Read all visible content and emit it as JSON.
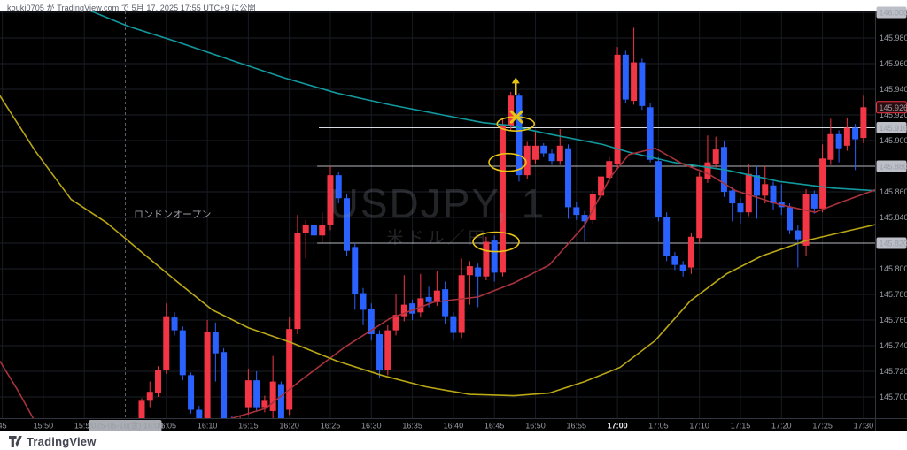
{
  "header": {
    "published_line": "kouki0705 が TradingView.com で 5月 17, 2025 17:55 UTC+9 に公開"
  },
  "watermark": {
    "symbol": "USDJPY, 1",
    "description": "米ドル／円"
  },
  "footer": {
    "brand": "TradingView"
  },
  "annotations": {
    "london_open_label": "ロンドンオープン",
    "london_line_minute": -2,
    "ellipses": [
      {
        "m": 45.6,
        "price": 145.913,
        "rx": 21,
        "ry": 8
      },
      {
        "m": 44.6,
        "price": 145.883,
        "rx": 21,
        "ry": 10
      },
      {
        "m": 43.2,
        "price": 145.821,
        "rx": 26,
        "ry": 11
      }
    ],
    "x_mark": {
      "m": 45.7,
      "price": 145.9185
    },
    "arrow_up": {
      "m": 45.6,
      "tip_price": 145.948,
      "base_price": 145.9355
    },
    "marker_color": "#e8c414"
  },
  "price_axis": {
    "ticks": [
      "146.000",
      "145.980",
      "145.960",
      "145.940",
      "145.920",
      "145.900",
      "145.880",
      "145.860",
      "145.840",
      "145.820",
      "145.800",
      "145.780",
      "145.760",
      "145.740",
      "145.720",
      "145.700"
    ],
    "level_badges": [
      {
        "label": "146.000",
        "price": 146.0
      },
      {
        "label": "145.910",
        "price": 145.91
      },
      {
        "label": "145.880",
        "price": 145.88
      },
      {
        "label": "145.820",
        "price": 145.82
      }
    ],
    "current_badge": {
      "label": "145.926",
      "price": 145.926
    }
  },
  "time_axis": {
    "ticks": [
      {
        "label": "45",
        "m": -17
      },
      {
        "label": "15:50",
        "m": -12
      },
      {
        "label": "15:55",
        "m": -7
      },
      {
        "label": "16:05",
        "m": 3
      },
      {
        "label": "16:10",
        "m": 8
      },
      {
        "label": "16:15",
        "m": 13
      },
      {
        "label": "16:20",
        "m": 18
      },
      {
        "label": "16:25",
        "m": 23
      },
      {
        "label": "16:30",
        "m": 28
      },
      {
        "label": "16:35",
        "m": 33
      },
      {
        "label": "16:40",
        "m": 38
      },
      {
        "label": "16:45",
        "m": 43
      },
      {
        "label": "16:50",
        "m": 48
      },
      {
        "label": "16:55",
        "m": 53
      },
      {
        "label": "17:00",
        "m": 58,
        "em": true
      },
      {
        "label": "17:05",
        "m": 63
      },
      {
        "label": "17:10",
        "m": 68
      },
      {
        "label": "17:15",
        "m": 73
      },
      {
        "label": "17:20",
        "m": 78
      },
      {
        "label": "17:25",
        "m": 83
      },
      {
        "label": "17:30",
        "m": 88
      }
    ],
    "date_badge": {
      "label": "2025-05-16(金) 16:00",
      "m": -2
    }
  },
  "chart_data": {
    "type": "candlestick",
    "symbol": "USDJPY",
    "interval": "1",
    "price_range": [
      145.7,
      146.0
    ],
    "grid_step": 0.02,
    "current_price": 145.926,
    "colors": {
      "background": "#000000",
      "up_candle": "#f23645",
      "down_candle": "#2962ff",
      "grid": "#1c1f29",
      "vgrid": "#181b23",
      "ema_teal": "#12999e",
      "ma_red": "#a8323c",
      "ma_yellow": "#b9a715",
      "separator": "#31353f"
    },
    "rays": [
      {
        "price": 145.91,
        "from_m": 21.6,
        "color": "#d7dae0"
      },
      {
        "price": 145.88,
        "from_m": 21.4,
        "color": "#b4b8c0"
      },
      {
        "price": 145.82,
        "from_m": 21.4,
        "color": "#b4b8c0"
      }
    ],
    "candles": [
      [
        "16:02",
        145.681,
        145.699,
        145.678,
        145.697
      ],
      [
        "16:03",
        145.697,
        145.712,
        145.692,
        145.704
      ],
      [
        "16:04",
        145.703,
        145.724,
        145.7,
        145.721
      ],
      [
        "16:05",
        145.721,
        145.773,
        145.718,
        145.763
      ],
      [
        "16:06",
        145.762,
        145.766,
        145.748,
        145.752
      ],
      [
        "16:07",
        145.752,
        145.755,
        145.713,
        145.717
      ],
      [
        "16:08",
        145.717,
        145.719,
        145.687,
        145.69
      ],
      [
        "16:09",
        145.69,
        145.693,
        145.679,
        145.682
      ],
      [
        "16:10",
        145.683,
        145.76,
        145.68,
        145.751
      ],
      [
        "16:11",
        145.751,
        145.758,
        145.712,
        145.734
      ],
      [
        "16:12",
        145.735,
        145.738,
        145.679,
        145.682
      ],
      [
        "16:13",
        145.682,
        145.685,
        145.674,
        145.677
      ],
      [
        "16:14",
        145.677,
        145.686,
        145.674,
        145.682
      ],
      [
        "16:15",
        145.692,
        145.722,
        145.686,
        145.713
      ],
      [
        "16:16",
        145.713,
        145.72,
        145.689,
        145.692
      ],
      [
        "16:17",
        145.692,
        145.701,
        145.688,
        145.697
      ],
      [
        "16:18",
        145.689,
        145.732,
        145.683,
        145.712
      ],
      [
        "16:19",
        145.71,
        145.712,
        145.68,
        145.683
      ],
      [
        "16:20",
        145.69,
        145.762,
        145.686,
        145.753
      ],
      [
        "16:21",
        145.753,
        145.842,
        145.749,
        145.828
      ],
      [
        "16:22",
        145.828,
        145.838,
        145.808,
        145.834
      ],
      [
        "16:23",
        145.834,
        145.837,
        145.809,
        145.826
      ],
      [
        "16:24",
        145.826,
        145.844,
        145.82,
        145.834
      ],
      [
        "16:25",
        145.834,
        145.88,
        145.83,
        145.873
      ],
      [
        "16:26",
        145.873,
        145.876,
        145.851,
        145.855
      ],
      [
        "16:27",
        145.855,
        145.858,
        145.81,
        145.814
      ],
      [
        "16:28",
        145.817,
        145.82,
        145.768,
        145.78
      ],
      [
        "16:29",
        145.781,
        145.785,
        145.756,
        145.768
      ],
      [
        "16:30",
        145.769,
        145.773,
        145.744,
        145.749
      ],
      [
        "16:31",
        145.749,
        145.752,
        145.715,
        145.721
      ],
      [
        "16:32",
        145.721,
        145.756,
        145.717,
        145.752
      ],
      [
        "16:33",
        145.752,
        145.78,
        145.748,
        145.764
      ],
      [
        "16:34",
        145.763,
        145.795,
        145.759,
        145.772
      ],
      [
        "16:35",
        145.773,
        145.776,
        145.76,
        145.765
      ],
      [
        "16:36",
        145.766,
        145.796,
        145.762,
        145.777
      ],
      [
        "16:37",
        145.778,
        145.786,
        145.77,
        145.774
      ],
      [
        "16:38",
        145.774,
        145.798,
        145.771,
        145.783
      ],
      [
        "16:39",
        145.784,
        145.79,
        145.757,
        145.763
      ],
      [
        "16:40",
        145.763,
        145.766,
        145.744,
        145.75
      ],
      [
        "16:41",
        145.75,
        145.808,
        145.746,
        145.795
      ],
      [
        "16:42",
        145.795,
        145.806,
        145.772,
        145.802
      ],
      [
        "16:43",
        145.801,
        145.804,
        145.77,
        145.794
      ],
      [
        "16:44",
        145.794,
        145.825,
        145.791,
        145.821
      ],
      [
        "16:45",
        145.822,
        145.826,
        145.79,
        145.797
      ],
      [
        "16:46",
        145.797,
        145.917,
        145.794,
        145.912
      ],
      [
        "16:47",
        145.911,
        145.938,
        145.908,
        145.935
      ],
      [
        "16:48",
        145.935,
        145.937,
        145.868,
        145.873
      ],
      [
        "16:49",
        145.873,
        145.899,
        145.87,
        145.896
      ],
      [
        "16:50",
        145.885,
        145.908,
        145.882,
        145.896
      ],
      [
        "16:51",
        145.896,
        145.898,
        145.887,
        145.89
      ],
      [
        "16:52",
        145.89,
        145.893,
        145.881,
        145.884
      ],
      [
        "16:53",
        145.884,
        145.909,
        145.881,
        145.896
      ],
      [
        "16:54",
        145.894,
        145.897,
        145.839,
        145.848
      ],
      [
        "16:55",
        145.848,
        145.852,
        145.838,
        145.842
      ],
      [
        "16:56",
        145.842,
        145.845,
        145.821,
        145.837
      ],
      [
        "16:57",
        145.838,
        145.861,
        145.835,
        145.858
      ],
      [
        "16:58",
        145.857,
        145.875,
        145.854,
        145.872
      ],
      [
        "16:59",
        145.871,
        145.887,
        145.868,
        145.884
      ],
      [
        "17:00",
        145.882,
        145.973,
        145.879,
        145.967
      ],
      [
        "17:01",
        145.967,
        145.97,
        145.929,
        145.932
      ],
      [
        "17:02",
        145.931,
        145.988,
        145.928,
        145.961
      ],
      [
        "17:03",
        145.961,
        145.964,
        145.924,
        145.927
      ],
      [
        "17:04",
        145.926,
        145.929,
        145.883,
        145.885
      ],
      [
        "17:05",
        145.884,
        145.887,
        145.837,
        145.84
      ],
      [
        "17:06",
        145.84,
        145.844,
        145.806,
        145.81
      ],
      [
        "17:07",
        145.81,
        145.813,
        145.799,
        145.803
      ],
      [
        "17:08",
        145.803,
        145.806,
        145.794,
        145.798
      ],
      [
        "17:09",
        145.801,
        145.828,
        145.796,
        145.825
      ],
      [
        "17:10",
        145.824,
        145.875,
        145.82,
        145.872
      ],
      [
        "17:11",
        145.87,
        145.904,
        145.867,
        145.883
      ],
      [
        "17:12",
        145.882,
        145.903,
        145.879,
        145.893
      ],
      [
        "17:13",
        145.895,
        145.9,
        145.856,
        145.86
      ],
      [
        "17:14",
        145.861,
        145.864,
        145.837,
        145.851
      ],
      [
        "17:15",
        145.851,
        145.855,
        145.835,
        145.844
      ],
      [
        "17:16",
        145.844,
        145.882,
        145.841,
        145.874
      ],
      [
        "17:17",
        145.873,
        145.88,
        145.839,
        145.857
      ],
      [
        "17:18",
        145.857,
        145.88,
        145.851,
        145.866
      ],
      [
        "17:19",
        145.865,
        145.868,
        145.846,
        145.851
      ],
      [
        "17:20",
        145.852,
        145.866,
        145.842,
        145.848
      ],
      [
        "17:21",
        145.848,
        145.851,
        145.827,
        145.83
      ],
      [
        "17:22",
        145.83,
        145.834,
        145.801,
        145.823
      ],
      [
        "17:23",
        145.818,
        145.862,
        145.81,
        145.858
      ],
      [
        "17:24",
        145.858,
        145.861,
        145.843,
        145.847
      ],
      [
        "17:25",
        145.847,
        145.897,
        145.844,
        145.886
      ],
      [
        "17:26",
        145.885,
        145.917,
        145.881,
        145.905
      ],
      [
        "17:27",
        145.905,
        145.908,
        145.883,
        145.894
      ],
      [
        "17:28",
        145.896,
        145.918,
        145.892,
        145.91
      ],
      [
        "17:29",
        145.91,
        145.913,
        145.877,
        145.901
      ],
      [
        "17:30",
        145.902,
        145.935,
        145.898,
        145.926
      ]
    ],
    "ma_lines": [
      {
        "name": "ema_teal",
        "color": "#12999e",
        "points": [
          [
            -8.1,
            146.006
          ],
          [
            -1.6,
            145.989
          ],
          [
            4.3,
            145.977
          ],
          [
            10.8,
            145.963
          ],
          [
            17.3,
            145.949
          ],
          [
            23.8,
            145.937
          ],
          [
            30.2,
            145.928
          ],
          [
            36.7,
            145.92
          ],
          [
            41.6,
            145.914
          ],
          [
            44.6,
            145.912
          ],
          [
            49.7,
            145.905
          ],
          [
            56.2,
            145.897
          ],
          [
            59.4,
            145.891
          ],
          [
            64.8,
            145.883
          ],
          [
            71.3,
            145.877
          ],
          [
            77.8,
            145.868
          ],
          [
            84.2,
            145.863
          ],
          [
            91.8,
            145.86
          ],
          [
            93.5,
            145.859
          ]
        ]
      },
      {
        "name": "ma_red_left",
        "color": "#a8323c",
        "points": [
          [
            -17.3,
            145.728
          ],
          [
            -15.1,
            145.705
          ],
          [
            -13.2,
            145.683
          ]
        ]
      },
      {
        "name": "ma_red",
        "color": "#a8323c",
        "points": [
          [
            9.2,
            145.68
          ],
          [
            15.1,
            145.691
          ],
          [
            19.4,
            145.713
          ],
          [
            24.8,
            145.739
          ],
          [
            30.2,
            145.761
          ],
          [
            35.6,
            145.774
          ],
          [
            41.0,
            145.778
          ],
          [
            45.4,
            145.789
          ],
          [
            49.7,
            145.803
          ],
          [
            54.0,
            145.834
          ],
          [
            57.2,
            145.872
          ],
          [
            59.4,
            145.889
          ],
          [
            62.6,
            145.894
          ],
          [
            65.9,
            145.882
          ],
          [
            69.1,
            145.874
          ],
          [
            72.4,
            145.861
          ],
          [
            77.8,
            145.85
          ],
          [
            82.1,
            145.844
          ],
          [
            85.3,
            145.852
          ],
          [
            89.6,
            145.862
          ],
          [
            93.3,
            145.868
          ]
        ]
      },
      {
        "name": "ma_yellow",
        "color": "#b9a715",
        "points": [
          [
            -17.3,
            145.935
          ],
          [
            -13.0,
            145.892
          ],
          [
            -8.6,
            145.854
          ],
          [
            -4.3,
            145.836
          ],
          [
            0,
            145.813
          ],
          [
            4.3,
            145.79
          ],
          [
            8.6,
            145.768
          ],
          [
            13.0,
            145.754
          ],
          [
            18.4,
            145.742
          ],
          [
            23.8,
            145.728
          ],
          [
            29.2,
            145.717
          ],
          [
            34.6,
            145.708
          ],
          [
            40.0,
            145.702
          ],
          [
            45.4,
            145.701
          ],
          [
            49.7,
            145.703
          ],
          [
            54.0,
            145.712
          ],
          [
            58.3,
            145.723
          ],
          [
            62.6,
            145.744
          ],
          [
            66.9,
            145.775
          ],
          [
            71.3,
            145.796
          ],
          [
            75.6,
            145.81
          ],
          [
            81.0,
            145.822
          ],
          [
            86.4,
            145.83
          ],
          [
            93.3,
            145.84
          ]
        ]
      }
    ]
  }
}
